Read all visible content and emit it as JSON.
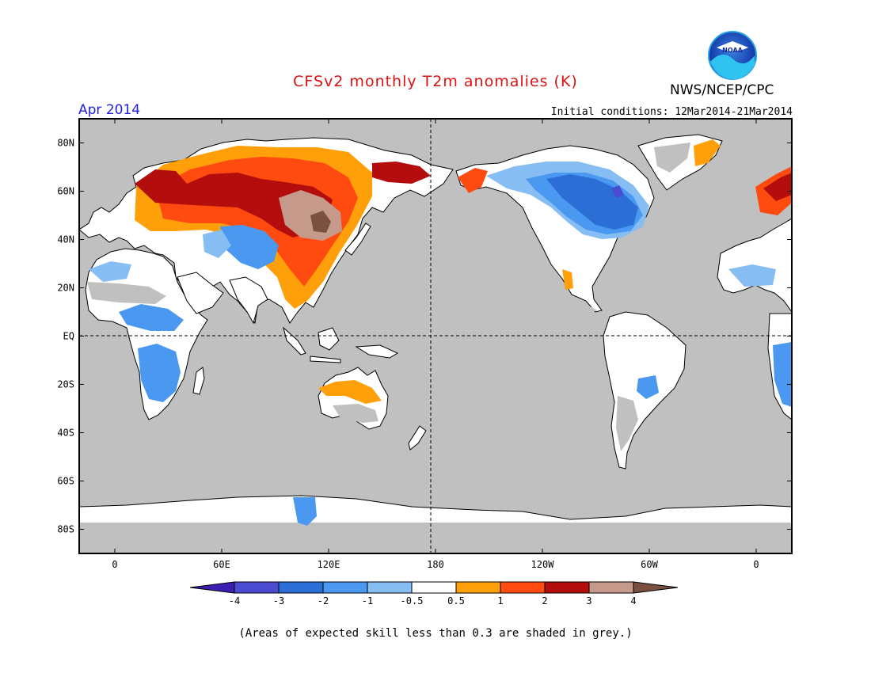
{
  "header": {
    "title": "CFSv2 monthly T2m anomalies (K)",
    "organization": "NWS/NCEP/CPC",
    "month": "Apr 2014",
    "initial_conditions": "Initial conditions: 12Mar2014-21Mar2014",
    "logo_text": "NOAA"
  },
  "colors": {
    "title": "#dd1111",
    "month": "#2222dd",
    "ocean_grey": "#c0c0c0",
    "land_neutral": "#ffffff"
  },
  "map": {
    "projection": "equirectangular",
    "lon_range": [
      -20,
      20
    ],
    "lat_range": [
      -90,
      90
    ],
    "y_ticks": [
      {
        "lat": 80,
        "label": "80N"
      },
      {
        "lat": 60,
        "label": "60N"
      },
      {
        "lat": 40,
        "label": "40N"
      },
      {
        "lat": 20,
        "label": "20N"
      },
      {
        "lat": 0,
        "label": "EQ"
      },
      {
        "lat": -20,
        "label": "20S"
      },
      {
        "lat": -40,
        "label": "40S"
      },
      {
        "lat": -60,
        "label": "60S"
      },
      {
        "lat": -80,
        "label": "80S"
      }
    ],
    "x_ticks": [
      {
        "lon": 0,
        "label": "0"
      },
      {
        "lon": 60,
        "label": "60E"
      },
      {
        "lon": 120,
        "label": "120E"
      },
      {
        "lon": 180,
        "label": "180"
      },
      {
        "lon": 240,
        "label": "120W"
      },
      {
        "lon": 300,
        "label": "60W"
      },
      {
        "lon": 360,
        "label": "0"
      }
    ]
  },
  "colorbar": {
    "bins": [
      {
        "color": "#3c1eb4"
      },
      {
        "color": "#4b4bd2"
      },
      {
        "color": "#2b6ed6"
      },
      {
        "color": "#4a98ef"
      },
      {
        "color": "#86bdf3"
      },
      {
        "color": "#ffffff"
      },
      {
        "color": "#ffa00a"
      },
      {
        "color": "#ff4a10"
      },
      {
        "color": "#b40d0d"
      },
      {
        "color": "#c69a8a"
      },
      {
        "color": "#7a5040"
      }
    ],
    "tick_labels": [
      "-4",
      "-3",
      "-2",
      "-1",
      "-0.5",
      "0.5",
      "1",
      "2",
      "3",
      "4"
    ]
  },
  "footnote": "(Areas of expected skill less than 0.3 are shaded in grey.)"
}
